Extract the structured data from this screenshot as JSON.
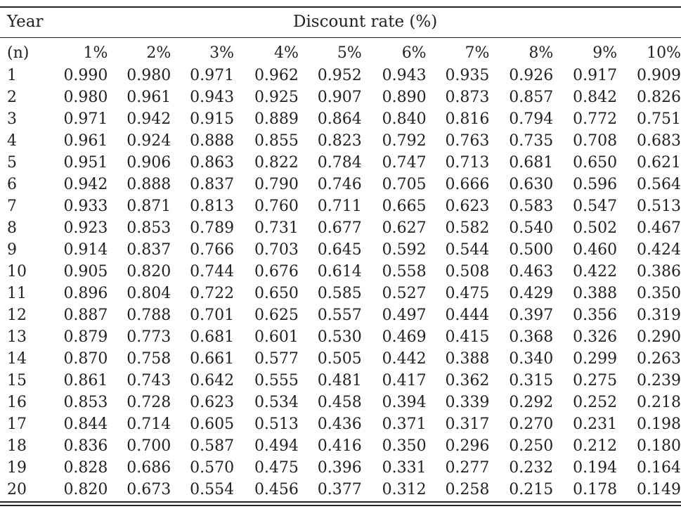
{
  "header": {
    "year_label": "Year",
    "rate_label": "Discount rate (%)",
    "n_label": "(n)",
    "rates": [
      "1%",
      "2%",
      "3%",
      "4%",
      "5%",
      "6%",
      "7%",
      "8%",
      "9%",
      "10%"
    ]
  },
  "rows": [
    {
      "year": "1",
      "values": [
        "0.990",
        "0.980",
        "0.971",
        "0.962",
        "0.952",
        "0.943",
        "0.935",
        "0.926",
        "0.917",
        "0.909"
      ]
    },
    {
      "year": "2",
      "values": [
        "0.980",
        "0.961",
        "0.943",
        "0.925",
        "0.907",
        "0.890",
        "0.873",
        "0.857",
        "0.842",
        "0.826"
      ]
    },
    {
      "year": "3",
      "values": [
        "0.971",
        "0.942",
        "0.915",
        "0.889",
        "0.864",
        "0.840",
        "0.816",
        "0.794",
        "0.772",
        "0.751"
      ]
    },
    {
      "year": "4",
      "values": [
        "0.961",
        "0.924",
        "0.888",
        "0.855",
        "0.823",
        "0.792",
        "0.763",
        "0.735",
        "0.708",
        "0.683"
      ]
    },
    {
      "year": "5",
      "values": [
        "0.951",
        "0.906",
        "0.863",
        "0.822",
        "0.784",
        "0.747",
        "0.713",
        "0.681",
        "0.650",
        "0.621"
      ]
    },
    {
      "year": "6",
      "values": [
        "0.942",
        "0.888",
        "0.837",
        "0.790",
        "0.746",
        "0.705",
        "0.666",
        "0.630",
        "0.596",
        "0.564"
      ]
    },
    {
      "year": "7",
      "values": [
        "0.933",
        "0.871",
        "0.813",
        "0.760",
        "0.711",
        "0.665",
        "0.623",
        "0.583",
        "0.547",
        "0.513"
      ]
    },
    {
      "year": "8",
      "values": [
        "0.923",
        "0.853",
        "0.789",
        "0.731",
        "0.677",
        "0.627",
        "0.582",
        "0.540",
        "0.502",
        "0.467"
      ]
    },
    {
      "year": "9",
      "values": [
        "0.914",
        "0.837",
        "0.766",
        "0.703",
        "0.645",
        "0.592",
        "0.544",
        "0.500",
        "0.460",
        "0.424"
      ]
    },
    {
      "year": "10",
      "values": [
        "0.905",
        "0.820",
        "0.744",
        "0.676",
        "0.614",
        "0.558",
        "0.508",
        "0.463",
        "0.422",
        "0.386"
      ]
    },
    {
      "year": "11",
      "values": [
        "0.896",
        "0.804",
        "0.722",
        "0.650",
        "0.585",
        "0.527",
        "0.475",
        "0.429",
        "0.388",
        "0.350"
      ]
    },
    {
      "year": "12",
      "values": [
        "0.887",
        "0.788",
        "0.701",
        "0.625",
        "0.557",
        "0.497",
        "0.444",
        "0.397",
        "0.356",
        "0.319"
      ]
    },
    {
      "year": "13",
      "values": [
        "0.879",
        "0.773",
        "0.681",
        "0.601",
        "0.530",
        "0.469",
        "0.415",
        "0.368",
        "0.326",
        "0.290"
      ]
    },
    {
      "year": "14",
      "values": [
        "0.870",
        "0.758",
        "0.661",
        "0.577",
        "0.505",
        "0.442",
        "0.388",
        "0.340",
        "0.299",
        "0.263"
      ]
    },
    {
      "year": "15",
      "values": [
        "0.861",
        "0.743",
        "0.642",
        "0.555",
        "0.481",
        "0.417",
        "0.362",
        "0.315",
        "0.275",
        "0.239"
      ]
    },
    {
      "year": "16",
      "values": [
        "0.853",
        "0.728",
        "0.623",
        "0.534",
        "0.458",
        "0.394",
        "0.339",
        "0.292",
        "0.252",
        "0.218"
      ]
    },
    {
      "year": "17",
      "values": [
        "0.844",
        "0.714",
        "0.605",
        "0.513",
        "0.436",
        "0.371",
        "0.317",
        "0.270",
        "0.231",
        "0.198"
      ]
    },
    {
      "year": "18",
      "values": [
        "0.836",
        "0.700",
        "0.587",
        "0.494",
        "0.416",
        "0.350",
        "0.296",
        "0.250",
        "0.212",
        "0.180"
      ]
    },
    {
      "year": "19",
      "values": [
        "0.828",
        "0.686",
        "0.570",
        "0.475",
        "0.396",
        "0.331",
        "0.277",
        "0.232",
        "0.194",
        "0.164"
      ]
    },
    {
      "year": "20",
      "values": [
        "0.820",
        "0.673",
        "0.554",
        "0.456",
        "0.377",
        "0.312",
        "0.258",
        "0.215",
        "0.178",
        "0.149"
      ]
    }
  ]
}
